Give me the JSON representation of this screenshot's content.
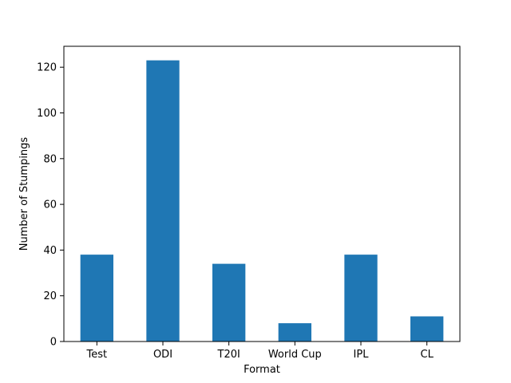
{
  "chart_data": {
    "type": "bar",
    "title": "",
    "xlabel": "Format",
    "ylabel": "Number of Stumpings",
    "categories": [
      "Test",
      "ODI",
      "T20I",
      "World Cup",
      "IPL",
      "CL"
    ],
    "values": [
      38,
      123,
      34,
      8,
      38,
      11
    ],
    "ylim": [
      0,
      129.15
    ],
    "yticks": [
      0,
      20,
      40,
      60,
      80,
      100,
      120
    ],
    "ytick_labels": [
      "0",
      "20",
      "40",
      "60",
      "80",
      "100",
      "120"
    ],
    "grid": false,
    "legend": "none",
    "bar_color": "#1f77b4"
  }
}
